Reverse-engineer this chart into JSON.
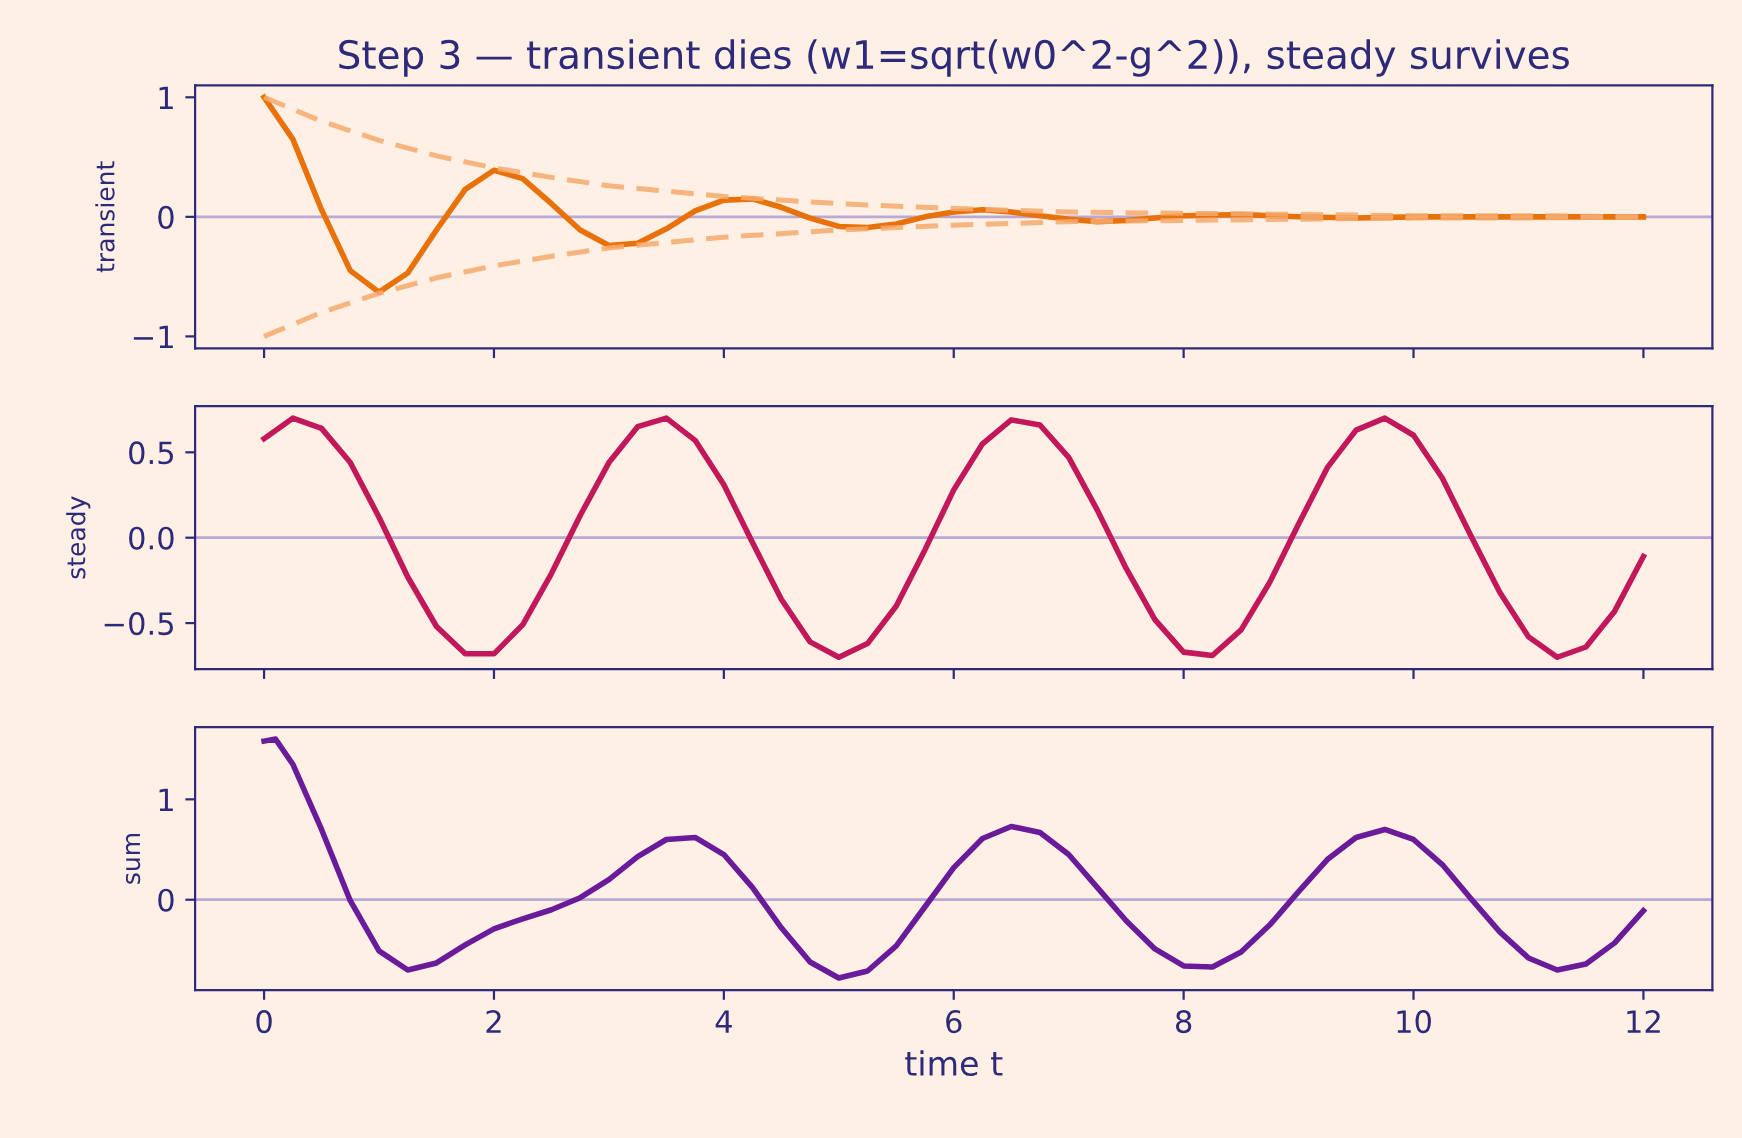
{
  "chart_data": [
    {
      "type": "line",
      "title": "Step 3 — transient dies (w1=sqrt(w0^2-g^2)), steady survives",
      "ylabel": "transient",
      "xlim": [
        -0.6,
        12.6
      ],
      "xticks": [
        0,
        2,
        4,
        6,
        8,
        10,
        12
      ],
      "ylim": [
        -1.1,
        1.1
      ],
      "yticks": [
        {
          "value": -1,
          "label": "−1"
        },
        0,
        1
      ],
      "tick_labels": "y",
      "grid": false,
      "legend": false,
      "marker": "none",
      "line_style": "solid",
      "ref_lines": [
        {
          "axis": "y",
          "value": 0,
          "color": "#b9a9d6"
        }
      ],
      "series": [
        {
          "color": "#e8710a",
          "x": [
            0,
            0.25,
            0.5,
            0.75,
            1,
            1.25,
            1.5,
            1.75,
            2,
            2.25,
            2.5,
            2.75,
            3,
            3.25,
            3.5,
            3.75,
            4,
            4.25,
            4.5,
            4.75,
            5,
            5.25,
            5.5,
            5.75,
            6,
            6.25,
            6.5,
            6.75,
            7,
            7.25,
            7.5,
            7.75,
            8,
            8.5,
            9,
            9.5,
            10,
            11,
            12
          ],
          "values": [
            1,
            0.65,
            0.06,
            -0.45,
            -0.63,
            -0.47,
            -0.11,
            0.23,
            0.39,
            0.32,
            0.11,
            -0.11,
            -0.24,
            -0.22,
            -0.1,
            0.05,
            0.14,
            0.15,
            0.08,
            -0.01,
            -0.08,
            -0.09,
            -0.06,
            0,
            0.04,
            0.06,
            0.04,
            0.01,
            -0.02,
            -0.04,
            -0.03,
            -0.01,
            0.01,
            0.02,
            0,
            -0.01,
            0,
            0,
            0
          ]
        },
        {
          "color": "#f5a96b",
          "line_style": "dashed",
          "x": [
            0,
            0.5,
            1,
            1.5,
            2,
            2.5,
            3,
            4,
            5,
            6,
            7,
            8,
            9,
            10,
            11,
            12
          ],
          "values": [
            1,
            0.8,
            0.64,
            0.51,
            0.41,
            0.33,
            0.26,
            0.17,
            0.11,
            0.07,
            0.04,
            0.03,
            0.02,
            0.01,
            0.01,
            0
          ]
        },
        {
          "color": "#f5a96b",
          "line_style": "dashed",
          "x": [
            0,
            0.5,
            1,
            1.5,
            2,
            2.5,
            3,
            4,
            5,
            6,
            7,
            8,
            9,
            10,
            11,
            12
          ],
          "values": [
            -1,
            -0.8,
            -0.64,
            -0.51,
            -0.41,
            -0.33,
            -0.26,
            -0.17,
            -0.11,
            -0.07,
            -0.04,
            -0.03,
            -0.02,
            -0.01,
            -0.01,
            0
          ]
        }
      ]
    },
    {
      "type": "line",
      "ylabel": "steady",
      "xlim": [
        -0.6,
        12.6
      ],
      "xticks": [
        0,
        2,
        4,
        6,
        8,
        10,
        12
      ],
      "ylim": [
        -0.77,
        0.77
      ],
      "yticks": [
        {
          "value": -0.5,
          "label": "−0.5"
        },
        {
          "value": 0,
          "label": "0.0"
        },
        {
          "value": 0.5,
          "label": "0.5"
        }
      ],
      "tick_labels": "y",
      "grid": false,
      "legend": false,
      "marker": "none",
      "line_style": "solid",
      "ref_lines": [
        {
          "axis": "y",
          "value": 0,
          "color": "#b9a9d6"
        }
      ],
      "series": [
        {
          "color": "#c2185b",
          "x": [
            0,
            0.25,
            0.5,
            0.75,
            1,
            1.25,
            1.5,
            1.75,
            2,
            2.25,
            2.5,
            2.75,
            3,
            3.25,
            3.5,
            3.75,
            4,
            4.25,
            4.5,
            4.75,
            5,
            5.25,
            5.5,
            5.75,
            6,
            6.25,
            6.5,
            6.75,
            7,
            7.25,
            7.5,
            7.75,
            8,
            8.25,
            8.5,
            8.75,
            9,
            9.25,
            9.5,
            9.75,
            10,
            10.25,
            10.5,
            10.75,
            11,
            11.25,
            11.5,
            11.75,
            12
          ],
          "values": [
            0.58,
            0.7,
            0.64,
            0.44,
            0.12,
            -0.23,
            -0.52,
            -0.68,
            -0.68,
            -0.51,
            -0.21,
            0.13,
            0.44,
            0.65,
            0.7,
            0.57,
            0.31,
            -0.03,
            -0.36,
            -0.61,
            -0.7,
            -0.62,
            -0.4,
            -0.07,
            0.28,
            0.55,
            0.69,
            0.66,
            0.47,
            0.16,
            -0.18,
            -0.48,
            -0.67,
            -0.69,
            -0.54,
            -0.26,
            0.08,
            0.41,
            0.63,
            0.7,
            0.6,
            0.35,
            0.01,
            -0.32,
            -0.58,
            -0.7,
            -0.64,
            -0.43,
            -0.11
          ]
        }
      ]
    },
    {
      "type": "line",
      "ylabel": "sum",
      "xlabel": "time t",
      "xlim": [
        -0.6,
        12.6
      ],
      "xticks": [
        0,
        2,
        4,
        6,
        8,
        10,
        12
      ],
      "ylim": [
        -0.9,
        1.72
      ],
      "yticks": [
        0,
        1
      ],
      "grid": false,
      "legend": false,
      "marker": "none",
      "line_style": "solid",
      "ref_lines": [
        {
          "axis": "y",
          "value": 0,
          "color": "#b9a9d6"
        }
      ],
      "series": [
        {
          "color": "#6a1b9a",
          "x": [
            0,
            0.1,
            0.25,
            0.5,
            0.75,
            1,
            1.25,
            1.5,
            1.75,
            2,
            2.25,
            2.5,
            2.75,
            3,
            3.25,
            3.5,
            3.75,
            4,
            4.25,
            4.5,
            4.75,
            5,
            5.25,
            5.5,
            5.75,
            6,
            6.25,
            6.5,
            6.75,
            7,
            7.25,
            7.5,
            7.75,
            8,
            8.25,
            8.5,
            8.75,
            9,
            9.25,
            9.5,
            9.75,
            10,
            10.25,
            10.5,
            10.75,
            11,
            11.25,
            11.5,
            11.75,
            12
          ],
          "values": [
            1.58,
            1.6,
            1.35,
            0.7,
            -0.01,
            -0.51,
            -0.7,
            -0.63,
            -0.45,
            -0.29,
            -0.19,
            -0.1,
            0.02,
            0.2,
            0.43,
            0.6,
            0.62,
            0.45,
            0.12,
            -0.28,
            -0.62,
            -0.78,
            -0.71,
            -0.46,
            -0.07,
            0.32,
            0.61,
            0.73,
            0.67,
            0.45,
            0.12,
            -0.21,
            -0.49,
            -0.66,
            -0.67,
            -0.52,
            -0.25,
            0.08,
            0.4,
            0.62,
            0.7,
            0.6,
            0.35,
            0.01,
            -0.32,
            -0.58,
            -0.7,
            -0.64,
            -0.43,
            -0.11
          ]
        }
      ]
    }
  ]
}
